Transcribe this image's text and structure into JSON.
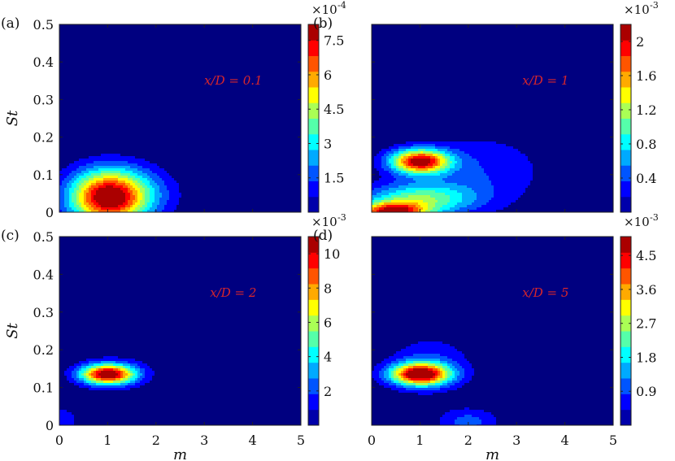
{
  "chart_data": [
    {
      "type": "heatmap",
      "panel_label": "(a)",
      "annotation": "x/D = 0.1",
      "xlabel": "",
      "ylabel": "St",
      "xlim": [
        0,
        5
      ],
      "ylim": [
        0,
        0.5
      ],
      "x_ticks": [
        "",
        "",
        "",
        "",
        "",
        ""
      ],
      "y_ticks": [
        "0",
        "0.1",
        "0.2",
        "0.3",
        "0.4",
        "0.5"
      ],
      "colorbar": {
        "multiplier_base": "×10",
        "multiplier_exp": "-4",
        "range": [
          0,
          8.2
        ],
        "ticks": [
          1.5,
          3,
          4.5,
          6,
          7.5
        ],
        "tick_labels": [
          "1.5",
          "3",
          "4.5",
          "6",
          "7.5"
        ]
      },
      "peaks": [
        {
          "m": 1.0,
          "st": 0.04,
          "value": 8.2,
          "sm": 0.55,
          "ss": 0.05
        },
        {
          "m": 1.7,
          "st": 0.05,
          "value": 1.2,
          "sm": 0.6,
          "ss": 0.05
        }
      ]
    },
    {
      "type": "heatmap",
      "panel_label": "(b)",
      "annotation": "x/D = 1",
      "xlabel": "",
      "ylabel": "",
      "xlim": [
        0,
        5
      ],
      "ylim": [
        0,
        0.5
      ],
      "x_ticks": [
        "",
        "",
        "",
        "",
        "",
        ""
      ],
      "y_ticks": [
        "",
        "",
        "",
        "",
        "",
        ""
      ],
      "colorbar": {
        "multiplier_base": "×10",
        "multiplier_exp": "-3",
        "range": [
          0,
          2.2
        ],
        "ticks": [
          0.4,
          0.8,
          1.2,
          1.6,
          2
        ],
        "tick_labels": [
          "0.4",
          "0.8",
          "1.2",
          "1.6",
          "2"
        ]
      },
      "peaks": [
        {
          "m": 1.0,
          "st": 0.135,
          "value": 2.1,
          "sm": 0.42,
          "ss": 0.022
        },
        {
          "m": 0.4,
          "st": 0.0,
          "value": 1.9,
          "sm": 0.5,
          "ss": 0.018
        },
        {
          "m": 1.0,
          "st": 0.035,
          "value": 1.0,
          "sm": 0.8,
          "ss": 0.03
        },
        {
          "m": 2.2,
          "st": 0.11,
          "value": 0.35,
          "sm": 1.0,
          "ss": 0.07
        }
      ]
    },
    {
      "type": "heatmap",
      "panel_label": "(c)",
      "annotation": "x/D = 2",
      "xlabel": "m",
      "ylabel": "St",
      "xlim": [
        0,
        5
      ],
      "ylim": [
        0,
        0.5
      ],
      "x_ticks": [
        "0",
        "1",
        "2",
        "3",
        "4",
        "5"
      ],
      "y_ticks": [
        "0",
        "0.1",
        "0.2",
        "0.3",
        "0.4",
        "0.5"
      ],
      "colorbar": {
        "multiplier_base": "×10",
        "multiplier_exp": "-3",
        "range": [
          0,
          11
        ],
        "ticks": [
          2,
          4,
          6,
          8,
          10
        ],
        "tick_labels": [
          "2",
          "4",
          "6",
          "8",
          "10"
        ]
      },
      "peaks": [
        {
          "m": 1.0,
          "st": 0.135,
          "value": 10.8,
          "sm": 0.38,
          "ss": 0.018
        },
        {
          "m": 0.0,
          "st": 0.01,
          "value": 1.6,
          "sm": 0.3,
          "ss": 0.03
        },
        {
          "m": 1.2,
          "st": 0.14,
          "value": 1.0,
          "sm": 0.6,
          "ss": 0.035
        }
      ]
    },
    {
      "type": "heatmap",
      "panel_label": "(d)",
      "annotation": "x/D = 5",
      "xlabel": "m",
      "ylabel": "",
      "xlim": [
        0,
        5
      ],
      "ylim": [
        0,
        0.5
      ],
      "x_ticks": [
        "0",
        "1",
        "2",
        "3",
        "4",
        "5"
      ],
      "y_ticks": [
        "",
        "",
        "",
        "",
        "",
        ""
      ],
      "colorbar": {
        "multiplier_base": "×10",
        "multiplier_exp": "-3",
        "range": [
          0,
          5
        ],
        "ticks": [
          0.9,
          1.8,
          2.7,
          3.6,
          4.5
        ],
        "tick_labels": [
          "0.9",
          "1.8",
          "2.7",
          "3.6",
          "4.5"
        ]
      },
      "peaks": [
        {
          "m": 1.0,
          "st": 0.135,
          "value": 4.9,
          "sm": 0.42,
          "ss": 0.02
        },
        {
          "m": 1.2,
          "st": 0.16,
          "value": 0.9,
          "sm": 0.6,
          "ss": 0.05
        },
        {
          "m": 2.0,
          "st": 0.01,
          "value": 1.0,
          "sm": 0.45,
          "ss": 0.025
        }
      ]
    }
  ]
}
